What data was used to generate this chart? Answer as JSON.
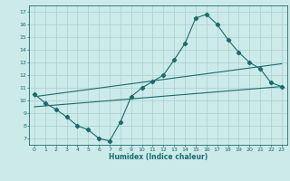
{
  "title": "",
  "xlabel": "Humidex (Indice chaleur)",
  "bg_color": "#cceaea",
  "grid_color": "#aacece",
  "line_color": "#1a6b6b",
  "xlim": [
    -0.5,
    23.5
  ],
  "ylim": [
    6.5,
    17.5
  ],
  "xticks": [
    0,
    1,
    2,
    3,
    4,
    5,
    6,
    7,
    8,
    9,
    10,
    11,
    12,
    13,
    14,
    15,
    16,
    17,
    18,
    19,
    20,
    21,
    22,
    23
  ],
  "yticks": [
    7,
    8,
    9,
    10,
    11,
    12,
    13,
    14,
    15,
    16,
    17
  ],
  "line1_x": [
    0,
    1,
    2,
    3,
    4,
    5,
    6,
    7,
    8,
    9,
    10,
    11,
    12,
    13,
    14,
    15,
    16,
    17,
    18,
    19,
    20,
    21,
    22,
    23
  ],
  "line1_y": [
    10.5,
    9.8,
    9.3,
    8.7,
    8.0,
    7.7,
    7.0,
    6.8,
    8.3,
    10.3,
    11.0,
    11.5,
    12.0,
    13.2,
    14.5,
    16.5,
    16.8,
    16.0,
    14.8,
    13.8,
    13.0,
    12.5,
    11.4,
    11.1
  ],
  "line2_x": [
    0,
    23
  ],
  "line2_y": [
    9.5,
    11.1
  ],
  "line3_x": [
    0,
    23
  ],
  "line3_y": [
    10.3,
    12.9
  ]
}
